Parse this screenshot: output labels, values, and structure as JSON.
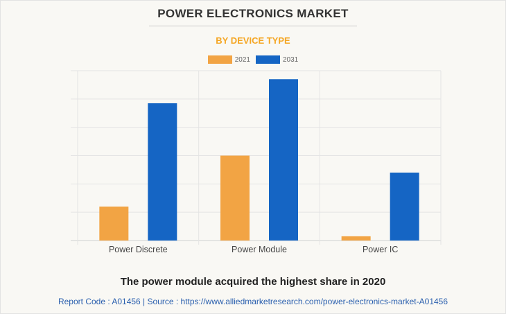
{
  "chart_data": {
    "type": "bar",
    "title": "POWER ELECTRONICS MARKET",
    "subtitle": "BY DEVICE TYPE",
    "categories": [
      "Power Discrete",
      "Power Module",
      "Power IC"
    ],
    "series": [
      {
        "name": "2021",
        "color": "#f2a444",
        "values": [
          1.2,
          3.0,
          0.15
        ]
      },
      {
        "name": "2031",
        "color": "#1565c4",
        "values": [
          4.85,
          5.7,
          2.4
        ]
      }
    ],
    "ylim": [
      0,
      6
    ],
    "y_ticks_labeled": false,
    "grid": true,
    "legend": "top-center",
    "xlabel": "",
    "ylabel": ""
  },
  "footer": {
    "note": "The power module acquired the highest share in 2020",
    "source": "Report Code : A01456  |  Source : https://www.alliedmarketresearch.com/power-electronics-market-A01456"
  }
}
